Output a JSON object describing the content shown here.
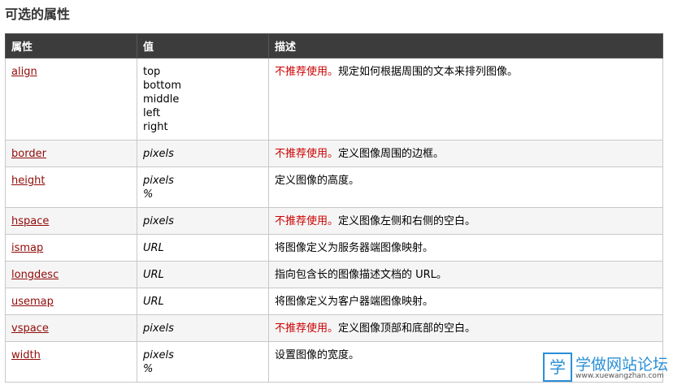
{
  "header": {
    "title": "可选的属性"
  },
  "table": {
    "columns": [
      "属性",
      "值",
      "描述"
    ],
    "rows": [
      {
        "attribute": "align",
        "values": [
          "top",
          "bottom",
          "middle",
          "left",
          "right"
        ],
        "deprecated": "不推荐使用。",
        "description": "规定如何根据周围的文本来排列图像。"
      },
      {
        "attribute": "border",
        "values": [
          "pixels"
        ],
        "deprecated": "不推荐使用。",
        "description": "定义图像周围的边框。"
      },
      {
        "attribute": "height",
        "values": [
          "pixels",
          "%"
        ],
        "description": "定义图像的高度。"
      },
      {
        "attribute": "hspace",
        "values": [
          "pixels"
        ],
        "deprecated": "不推荐使用。",
        "description": "定义图像左侧和右侧的空白。"
      },
      {
        "attribute": "ismap",
        "values": [
          "URL"
        ],
        "description": "将图像定义为服务器端图像映射。"
      },
      {
        "attribute": "longdesc",
        "values": [
          "URL"
        ],
        "description": "指向包含长的图像描述文档的 URL。"
      },
      {
        "attribute": "usemap",
        "values": [
          "URL"
        ],
        "description": "将图像定义为客户器端图像映射。"
      },
      {
        "attribute": "vspace",
        "values": [
          "pixels"
        ],
        "deprecated": "不推荐使用。",
        "description": "定义图像顶部和底部的空白。"
      },
      {
        "attribute": "width",
        "values": [
          "pixels",
          "%"
        ],
        "description": "设置图像的宽度。"
      }
    ]
  },
  "watermark": {
    "icon": "学",
    "title": "学做网站论坛",
    "url": "www.xuewangzhan.com"
  }
}
